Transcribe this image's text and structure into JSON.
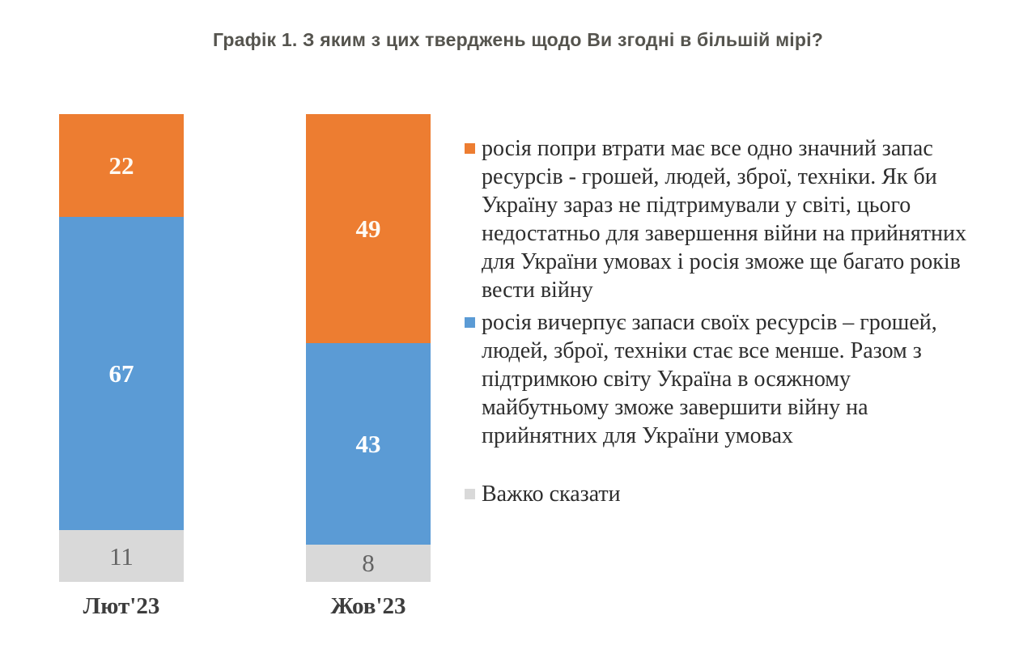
{
  "title": "Графік 1. З яким з цих тверджень щодо Ви згодні в більшій мірі?",
  "chart_data": {
    "type": "bar",
    "stacked": true,
    "title": "Графік 1. З яким з цих тверджень щодо Ви згодні в більшій мірі?",
    "categories": [
      "Лют'23",
      "Жов'23"
    ],
    "ylim": [
      0,
      100
    ],
    "grid": false,
    "legend_position": "right",
    "series": [
      {
        "name": "росія попри втрати має все одно значний запас ресурсів - грошей, людей, зброї, техніки. Як би Україну зараз не підтримували у світі, цього недостатньо для завершення війни на прийнятних для України умовах і росія зможе ще багато років вести війну",
        "color": "#ED7D31",
        "values": [
          22,
          49
        ],
        "value_label_color": "#FEFAF3",
        "value_label_bold": true
      },
      {
        "name": "росія вичерпує запаси своїх ресурсів – грошей, людей, зброї, техніки стає все менше. Разом з підтримкою світу Україна в осяжному майбутньому зможе завершити війну на прийнятних для України умовах",
        "color": "#5B9BD5",
        "values": [
          67,
          43
        ],
        "value_label_color": "#FFFFFF",
        "value_label_bold": true
      },
      {
        "name": "Важко сказати",
        "color": "#D9D9D9",
        "values": [
          11,
          8
        ],
        "value_label_color": "#636363",
        "value_label_bold": false
      }
    ]
  },
  "legend": {
    "entries": [
      {
        "swatch_color": "#ED7D31",
        "text": "росія попри втрати має все одно значний запас\nресурсів - грошей, людей, зброї, техніки. Як би\nУкраїну зараз не підтримували у світі, цього\nнедостатньо для завершення війни на прийнятних\nдля України умовах і росія зможе ще багато років\nвести війну"
      },
      {
        "swatch_color": "#5B9BD5",
        "text": "росія вичерпує запаси своїх ресурсів – грошей,\nлюдей, зброї, техніки стає все менше. Разом з\nпідтримкою світу Україна в осяжному\nмайбутньому зможе завершити війну на\nприйнятних для України умовах"
      },
      {
        "swatch_color": "#D9D9D9",
        "text": "Важко сказати"
      }
    ]
  }
}
